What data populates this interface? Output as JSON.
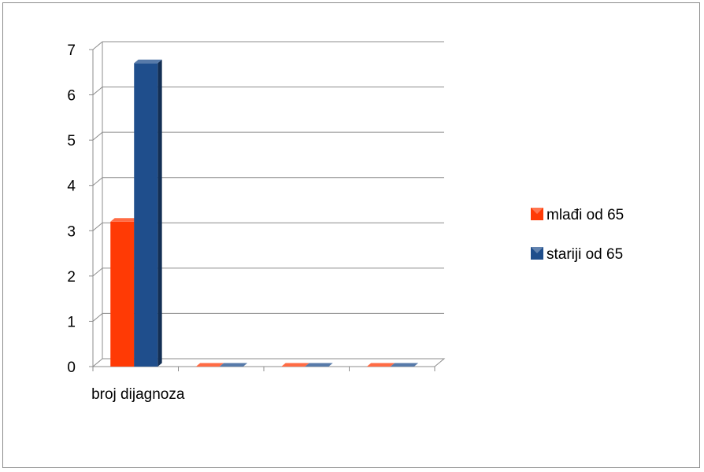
{
  "chart_data": {
    "type": "bar",
    "style": "3d-clustered-column",
    "categories": [
      "broj dijagnoza",
      "",
      "",
      ""
    ],
    "series": [
      {
        "name": "mlađi od 65",
        "values": [
          3.2,
          0,
          0,
          0
        ],
        "color": "#ff3a05"
      },
      {
        "name": "stariji od 65",
        "values": [
          6.7,
          0,
          0,
          0
        ],
        "color": "#1f4e8c"
      }
    ],
    "ylim": [
      0,
      7
    ],
    "yticks": [
      0,
      1,
      2,
      3,
      4,
      5,
      6,
      7
    ],
    "grid": true,
    "legend_position": "right"
  }
}
